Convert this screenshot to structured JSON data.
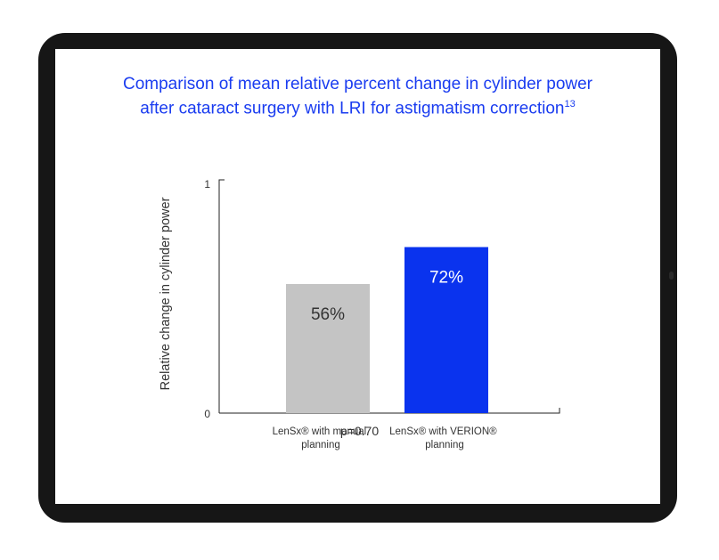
{
  "title": {
    "line1": "Comparison of mean relative percent change in  cylinder power",
    "line2": "after cataract surgery with LRI for astigmatism correction",
    "ref": "13"
  },
  "footnote": "p=0.70",
  "colors": {
    "title": "#1a3cf0",
    "bar_manual": "#c4c4c4",
    "bar_verion": "#0a33ee",
    "frame": "#161616"
  },
  "chart_data": {
    "type": "bar",
    "categories": [
      {
        "line1": "LenSx® with manual",
        "line2": "planning"
      },
      {
        "line1": "LenSx® with VERION®",
        "line2": "planning"
      }
    ],
    "values": [
      0.56,
      0.72
    ],
    "data_labels": [
      "56%",
      "72%"
    ],
    "ylabel": "Relative change in cylinder power",
    "yticks": [
      "0",
      "1"
    ],
    "ylim": [
      0,
      1
    ],
    "grid": false,
    "legend": "none"
  }
}
